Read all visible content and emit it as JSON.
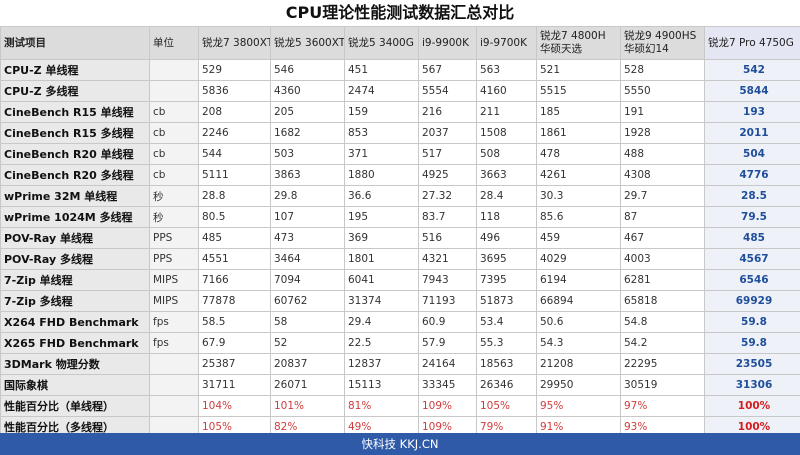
{
  "title": "CPU理论性能测试数据汇总对比",
  "headers": {
    "item": "测试项目",
    "unit": "单位",
    "cpus": [
      "锐龙7 3800XT",
      "锐龙5 3600XT",
      "锐龙5 3400G",
      "i9-9900K",
      "i9-9700K",
      "锐龙7 4800H\n华硕天选",
      "锐龙9 4900HS\n华硕幻14",
      "锐龙7 Pro 4750G"
    ]
  },
  "rows": [
    {
      "name": "CPU-Z 单线程",
      "unit": "",
      "values": [
        "529",
        "546",
        "451",
        "567",
        "563",
        "521",
        "528",
        "542"
      ]
    },
    {
      "name": "CPU-Z 多线程",
      "unit": "",
      "values": [
        "5836",
        "4360",
        "2474",
        "5554",
        "4160",
        "5515",
        "5550",
        "5844"
      ]
    },
    {
      "name": "CineBench R15 单线程",
      "unit": "cb",
      "values": [
        "208",
        "205",
        "159",
        "216",
        "211",
        "185",
        "191",
        "193"
      ]
    },
    {
      "name": "CineBench R15 多线程",
      "unit": "cb",
      "values": [
        "2246",
        "1682",
        "853",
        "2037",
        "1508",
        "1861",
        "1928",
        "2011"
      ]
    },
    {
      "name": "CineBench R20 单线程",
      "unit": "cb",
      "values": [
        "544",
        "503",
        "371",
        "517",
        "508",
        "478",
        "488",
        "504"
      ]
    },
    {
      "name": "CineBench R20 多线程",
      "unit": "cb",
      "values": [
        "5111",
        "3863",
        "1880",
        "4925",
        "3663",
        "4261",
        "4308",
        "4776"
      ]
    },
    {
      "name": "wPrime 32M 单线程",
      "unit": "秒",
      "values": [
        "28.8",
        "29.8",
        "36.6",
        "27.32",
        "28.4",
        "30.3",
        "29.7",
        "28.5"
      ]
    },
    {
      "name": "wPrime 1024M 多线程",
      "unit": "秒",
      "values": [
        "80.5",
        "107",
        "195",
        "83.7",
        "118",
        "85.6",
        "87",
        "79.5"
      ]
    },
    {
      "name": "POV-Ray 单线程",
      "unit": "PPS",
      "values": [
        "485",
        "473",
        "369",
        "516",
        "496",
        "459",
        "467",
        "485"
      ]
    },
    {
      "name": "POV-Ray 多线程",
      "unit": "PPS",
      "values": [
        "4551",
        "3464",
        "1801",
        "4321",
        "3695",
        "4029",
        "4003",
        "4567"
      ]
    },
    {
      "name": "7-Zip 单线程",
      "unit": "MIPS",
      "values": [
        "7166",
        "7094",
        "6041",
        "7943",
        "7395",
        "6194",
        "6281",
        "6546"
      ]
    },
    {
      "name": "7-Zip 多线程",
      "unit": "MIPS",
      "values": [
        "77878",
        "60762",
        "31374",
        "71193",
        "51873",
        "66894",
        "65818",
        "69929"
      ]
    },
    {
      "name": "X264 FHD Benchmark",
      "unit": "fps",
      "values": [
        "58.5",
        "58",
        "29.4",
        "60.9",
        "53.4",
        "50.6",
        "54.8",
        "59.8"
      ]
    },
    {
      "name": "X265 FHD Benchmark",
      "unit": "fps",
      "values": [
        "67.9",
        "52",
        "22.5",
        "57.9",
        "55.3",
        "54.3",
        "54.2",
        "59.8"
      ]
    },
    {
      "name": "3DMark 物理分数",
      "unit": "",
      "values": [
        "25387",
        "20837",
        "12837",
        "24164",
        "18563",
        "21208",
        "22295",
        "23505"
      ]
    },
    {
      "name": "国际象棋",
      "unit": "",
      "values": [
        "31711",
        "26071",
        "15113",
        "33345",
        "26346",
        "29950",
        "30519",
        "31306"
      ]
    },
    {
      "name": "性能百分比（单线程）",
      "unit": "",
      "pct": true,
      "values": [
        "104%",
        "101%",
        "81%",
        "109%",
        "105%",
        "95%",
        "97%",
        "100%"
      ]
    },
    {
      "name": "性能百分比（多线程）",
      "unit": "",
      "pct": true,
      "values": [
        "105%",
        "82%",
        "49%",
        "109%",
        "79%",
        "91%",
        "93%",
        "100%"
      ]
    }
  ],
  "footer": "快科技 KKJ.CN",
  "colors": {
    "footer_bg": "#2f5aa8",
    "highlight_text": "#1f4e9a",
    "pct_text": "#d23c3c"
  }
}
